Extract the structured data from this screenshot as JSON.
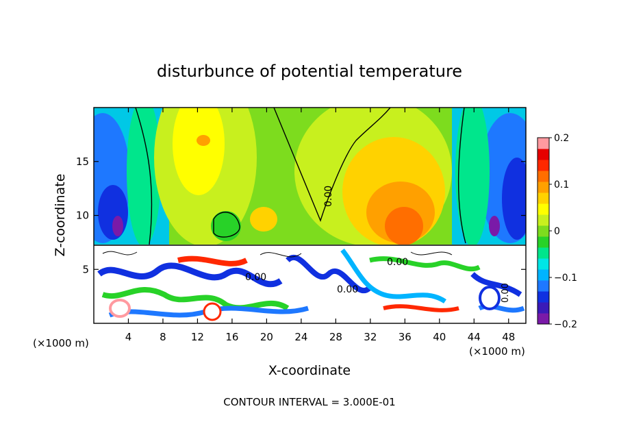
{
  "chart_data": {
    "type": "heatmap",
    "title": "disturbunce of potential temperature",
    "xlabel": "X-coordinate",
    "ylabel": "Z-coordinate",
    "x_unit_left": "(×1000 m)",
    "x_unit_right": "(×1000 m)",
    "xlim": [
      0,
      50
    ],
    "ylim": [
      0,
      20
    ],
    "x_ticks": [
      4,
      8,
      12,
      16,
      20,
      24,
      28,
      32,
      36,
      40,
      44,
      48
    ],
    "x_tick_labels": [
      "4",
      "8",
      "12",
      "16",
      "20",
      "24",
      "28",
      "32",
      "36",
      "40",
      "44",
      "48"
    ],
    "y_ticks": [
      5,
      10,
      15
    ],
    "y_tick_labels": [
      "5",
      "10",
      "15"
    ],
    "colorbar": {
      "range": [
        -0.2,
        0.2
      ],
      "ticks": [
        0.2,
        0.1,
        0,
        -0.1,
        -0.2
      ],
      "tick_labels": [
        "0.2",
        "0.1",
        "0",
        "−0.1",
        "−0.2"
      ],
      "colors": [
        "#7a1aa8",
        "#3a1ab8",
        "#1030e0",
        "#1e78ff",
        "#00b4ff",
        "#00e6e6",
        "#00e68c",
        "#28d228",
        "#7ddc1e",
        "#c8f01e",
        "#ffff00",
        "#ffd200",
        "#ffa000",
        "#ff6e00",
        "#ff2800",
        "#e60000",
        "#ff9aa0"
      ]
    },
    "contour_labels": [
      "0.00",
      "0.00",
      "0.00",
      "0.00",
      "0.00"
    ],
    "footer": "CONTOUR INTERVAL = 3.000E-01"
  }
}
